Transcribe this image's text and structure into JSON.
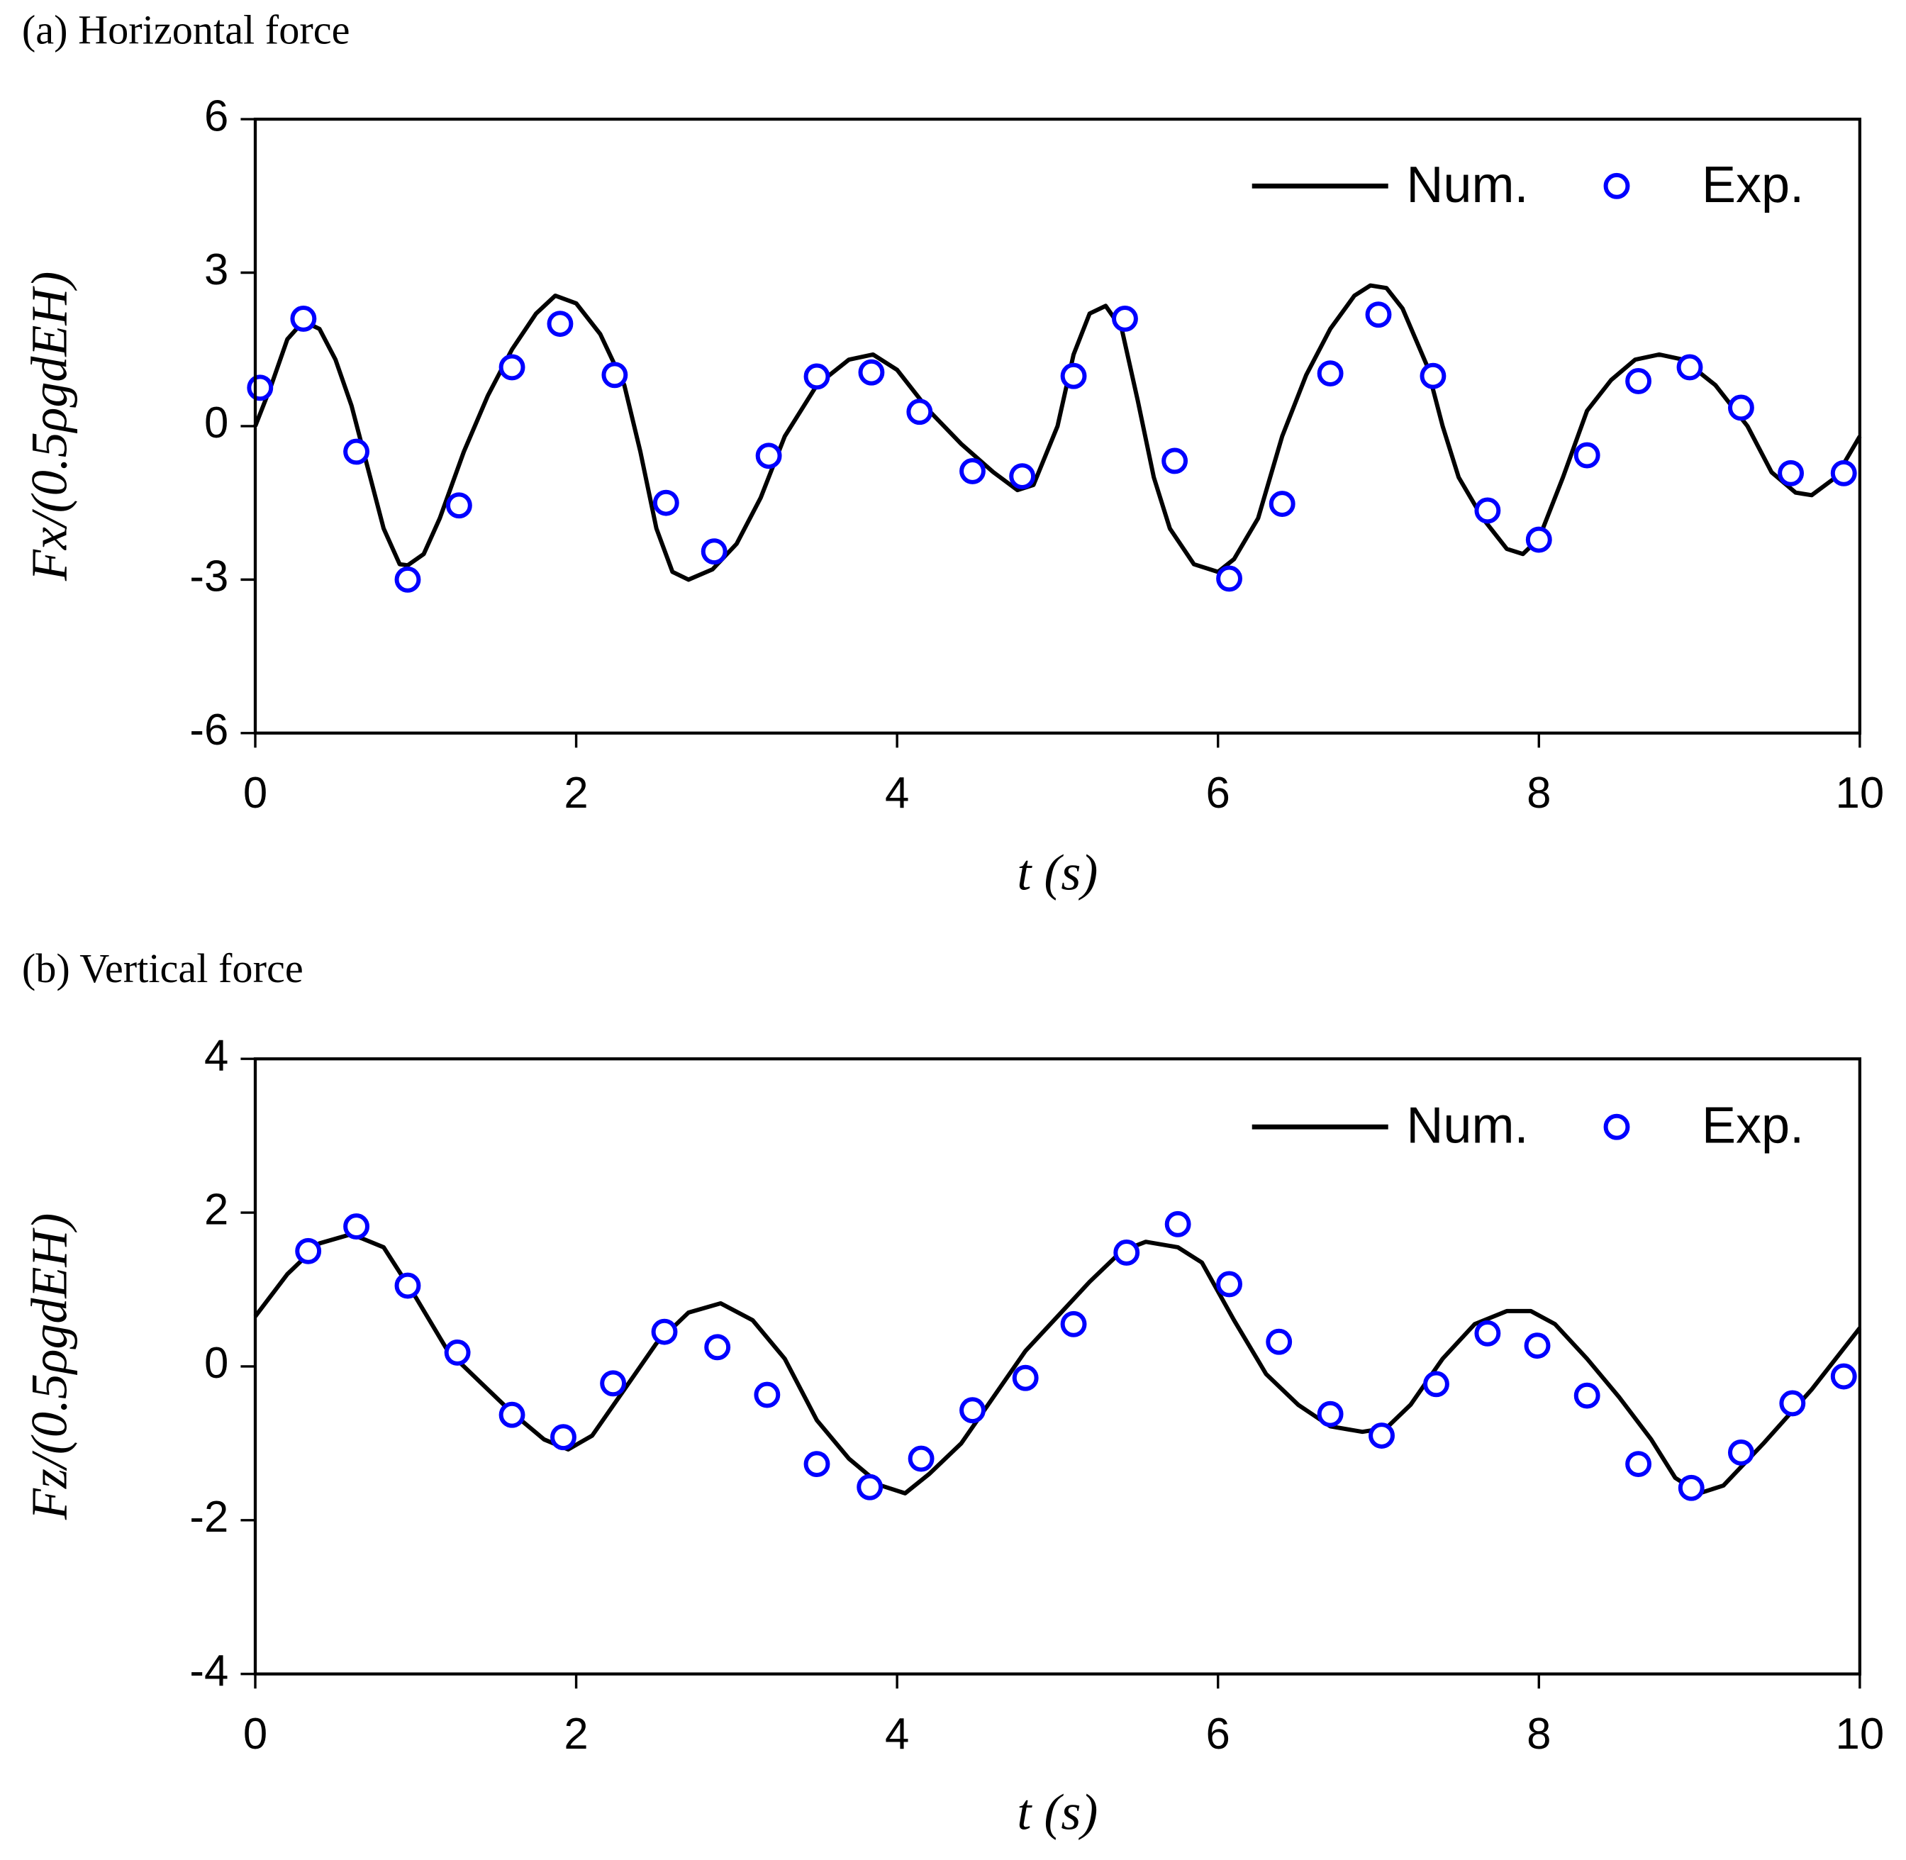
{
  "chart_data": [
    {
      "type": "line",
      "title": "(a) Horizontal force",
      "xlabel": "t (s)",
      "ylabel": "Fx/(0.5ρgdEH)",
      "xlim": [
        0,
        10
      ],
      "xticks": [
        0,
        2,
        4,
        6,
        8,
        10
      ],
      "ylim": [
        -6,
        6
      ],
      "yticks": [
        -6,
        -3,
        0,
        3,
        6
      ],
      "legend": "upper right",
      "series": [
        {
          "name": "Num.",
          "color": "#000000",
          "style": "line",
          "x": [
            0,
            0.1,
            0.2,
            0.3,
            0.4,
            0.5,
            0.6,
            0.7,
            0.8,
            0.9,
            0.95,
            1.05,
            1.15,
            1.3,
            1.45,
            1.6,
            1.75,
            1.87,
            2.0,
            2.15,
            2.3,
            2.4,
            2.5,
            2.6,
            2.7,
            2.85,
            3.0,
            3.15,
            3.3,
            3.5,
            3.7,
            3.85,
            4.0,
            4.2,
            4.4,
            4.6,
            4.75,
            4.85,
            5.0,
            5.1,
            5.2,
            5.3,
            5.4,
            5.5,
            5.6,
            5.7,
            5.85,
            6.0,
            6.1,
            6.25,
            6.4,
            6.55,
            6.7,
            6.85,
            6.95,
            7.05,
            7.15,
            7.3,
            7.4,
            7.5,
            7.65,
            7.8,
            7.9,
            8.0,
            8.15,
            8.3,
            8.45,
            8.6,
            8.75,
            8.9,
            9.1,
            9.3,
            9.45,
            9.6,
            9.7,
            9.85,
            10
          ],
          "values": [
            0,
            0.8,
            1.7,
            2.05,
            1.9,
            1.3,
            0.4,
            -0.8,
            -2.0,
            -2.7,
            -2.72,
            -2.5,
            -1.8,
            -0.5,
            0.6,
            1.5,
            2.2,
            2.55,
            2.4,
            1.8,
            0.8,
            -0.5,
            -2.0,
            -2.85,
            -3.0,
            -2.8,
            -2.3,
            -1.4,
            -0.2,
            0.8,
            1.3,
            1.4,
            1.1,
            0.3,
            -0.35,
            -0.9,
            -1.25,
            -1.15,
            0.0,
            1.4,
            2.2,
            2.35,
            1.9,
            0.5,
            -1.0,
            -2.0,
            -2.7,
            -2.85,
            -2.6,
            -1.8,
            -0.2,
            1.0,
            1.9,
            2.55,
            2.75,
            2.7,
            2.3,
            1.2,
            0.0,
            -1.0,
            -1.8,
            -2.4,
            -2.5,
            -2.2,
            -1.0,
            0.3,
            0.9,
            1.3,
            1.4,
            1.3,
            0.8,
            0.0,
            -0.9,
            -1.3,
            -1.35,
            -1.0,
            -0.2
          ]
        },
        {
          "name": "Exp.",
          "color": "#0000ff",
          "style": "marker",
          "x": [
            0.03,
            0.3,
            0.63,
            0.95,
            1.27,
            1.6,
            1.9,
            2.24,
            2.56,
            2.86,
            3.2,
            3.5,
            3.84,
            4.14,
            4.47,
            4.78,
            5.1,
            5.42,
            5.73,
            6.07,
            6.4,
            6.7,
            7.0,
            7.34,
            7.68,
            8.0,
            8.3,
            8.62,
            8.94,
            9.26,
            9.57,
            9.9
          ],
          "values": [
            0.75,
            2.1,
            -0.5,
            -3.0,
            -1.55,
            1.15,
            2.0,
            1.0,
            -1.5,
            -2.45,
            -0.58,
            0.97,
            1.05,
            0.28,
            -0.88,
            -0.98,
            0.98,
            2.1,
            -0.68,
            -2.98,
            -1.52,
            1.03,
            2.18,
            0.98,
            -1.65,
            -2.22,
            -0.57,
            0.88,
            1.15,
            0.36,
            -0.92,
            -0.92
          ]
        }
      ]
    },
    {
      "type": "line",
      "title": "(b) Vertical force",
      "xlabel": "t (s)",
      "ylabel": "Fz/(0.5ρgdEH)",
      "xlim": [
        0,
        10
      ],
      "xticks": [
        0,
        2,
        4,
        6,
        8,
        10
      ],
      "ylim": [
        -4,
        4
      ],
      "yticks": [
        -4,
        -2,
        0,
        2,
        4
      ],
      "legend": "upper right",
      "series": [
        {
          "name": "Num.",
          "color": "#000000",
          "style": "line",
          "x": [
            0,
            0.2,
            0.4,
            0.6,
            0.8,
            1.0,
            1.2,
            1.4,
            1.6,
            1.8,
            1.95,
            2.1,
            2.3,
            2.5,
            2.7,
            2.9,
            3.1,
            3.3,
            3.5,
            3.7,
            3.9,
            4.05,
            4.2,
            4.4,
            4.6,
            4.8,
            5.0,
            5.2,
            5.4,
            5.55,
            5.75,
            5.9,
            6.1,
            6.3,
            6.5,
            6.7,
            6.9,
            7.05,
            7.2,
            7.4,
            7.6,
            7.8,
            7.95,
            8.1,
            8.3,
            8.5,
            8.7,
            8.85,
            9.0,
            9.15,
            9.4,
            9.7,
            10
          ],
          "values": [
            0.65,
            1.2,
            1.6,
            1.72,
            1.55,
            0.9,
            0.2,
            -0.2,
            -0.6,
            -0.95,
            -1.08,
            -0.9,
            -0.3,
            0.3,
            0.7,
            0.82,
            0.6,
            0.1,
            -0.7,
            -1.2,
            -1.55,
            -1.65,
            -1.4,
            -1.0,
            -0.4,
            0.2,
            0.65,
            1.1,
            1.5,
            1.62,
            1.55,
            1.35,
            0.6,
            -0.1,
            -0.5,
            -0.78,
            -0.85,
            -0.8,
            -0.5,
            0.1,
            0.55,
            0.72,
            0.72,
            0.55,
            0.1,
            -0.4,
            -0.95,
            -1.45,
            -1.65,
            -1.55,
            -1.0,
            -0.3,
            0.5
          ]
        },
        {
          "name": "Exp.",
          "color": "#0000ff",
          "style": "marker",
          "x": [
            0.33,
            0.63,
            0.95,
            1.26,
            1.6,
            1.92,
            2.23,
            2.55,
            2.88,
            3.19,
            3.5,
            3.83,
            4.15,
            4.47,
            4.8,
            5.1,
            5.43,
            5.75,
            6.07,
            6.38,
            6.7,
            7.02,
            7.36,
            7.68,
            7.99,
            8.3,
            8.62,
            8.95,
            9.26,
            9.58,
            9.9
          ],
          "values": [
            1.5,
            1.82,
            1.05,
            0.18,
            -0.63,
            -0.92,
            -0.22,
            0.45,
            0.25,
            -0.37,
            -1.27,
            -1.57,
            -1.2,
            -0.57,
            -0.15,
            0.55,
            1.48,
            1.85,
            1.07,
            0.32,
            -0.62,
            -0.9,
            -0.23,
            0.43,
            0.27,
            -0.38,
            -1.27,
            -1.58,
            -1.12,
            -0.48,
            -0.13
          ]
        }
      ]
    }
  ]
}
